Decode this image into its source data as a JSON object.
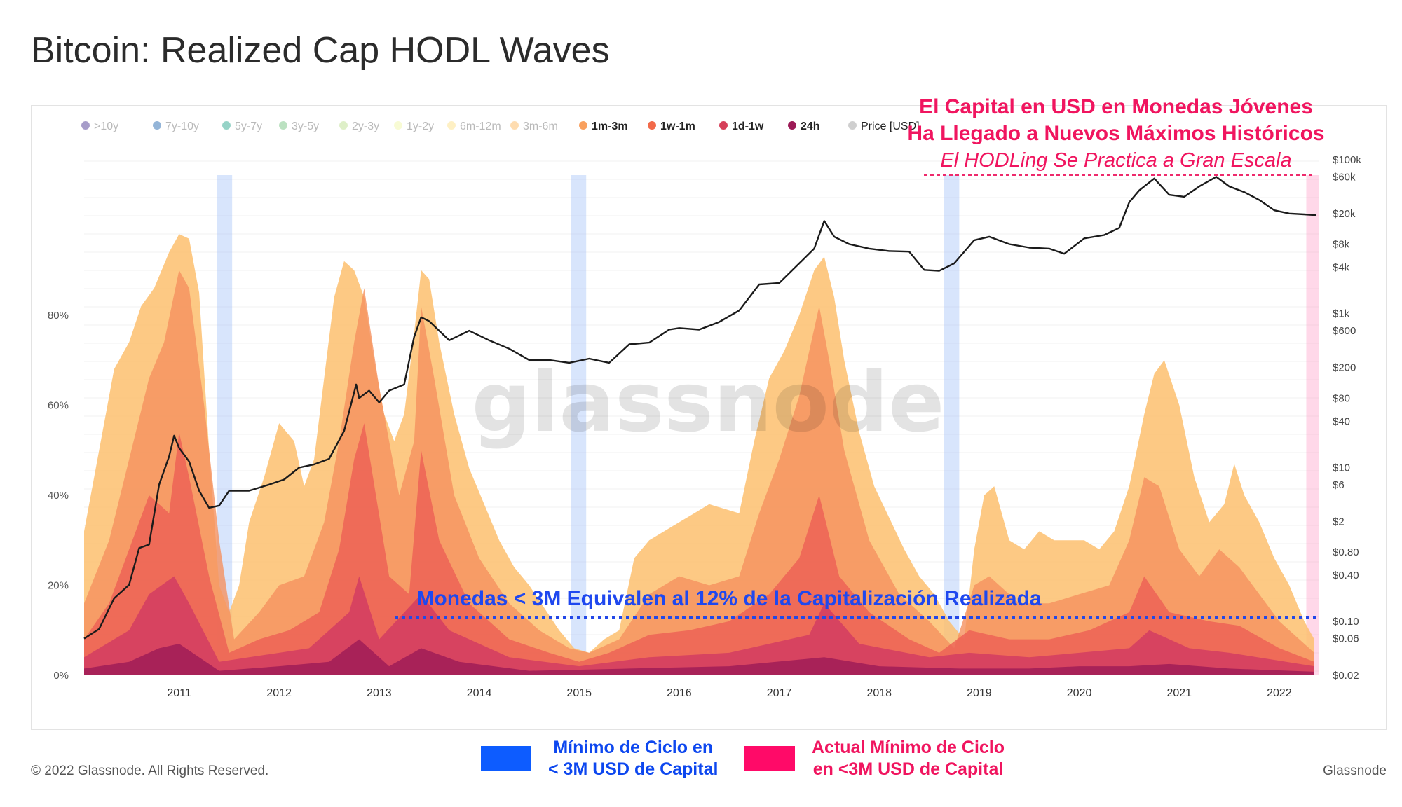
{
  "title": "Bitcoin: Realized Cap HODL Waves",
  "legend": [
    {
      "label": ">10y",
      "color": "#5d4a9c"
    },
    {
      "label": "7y-10y",
      "color": "#3d79b8"
    },
    {
      "label": "5y-7y",
      "color": "#3fae99"
    },
    {
      "label": "3y-5y",
      "color": "#84c98e"
    },
    {
      "label": "2y-3y",
      "color": "#c2e29a"
    },
    {
      "label": "1y-2y",
      "color": "#f2f7b0"
    },
    {
      "label": "6m-12m",
      "color": "#fde394"
    },
    {
      "label": "3m-6m",
      "color": "#fdbf6f"
    },
    {
      "label": "1m-3m",
      "color": "#f9a05e"
    },
    {
      "label": "1w-1m",
      "color": "#f26a4a"
    },
    {
      "label": "1d-1w",
      "color": "#d63f59"
    },
    {
      "label": "24h",
      "color": "#9c1a56"
    },
    {
      "label": "Price [USD]",
      "color": "#cfcfcf"
    }
  ],
  "annotations": {
    "top_line1": "El Capital en USD en Monedas Jóvenes",
    "top_line2": "Ha Llegado a Nuevos Máximos Históricos",
    "top_line3": "El HODLing Se Practica a Gran Escala",
    "mid_line": "Monedas < 3M Equivalen al 12% de la Capitalización Realizada"
  },
  "watermark": "glassnode",
  "key": {
    "blue_label_1": "Mínimo de Ciclo en",
    "blue_label_2": "< 3M USD de Capital",
    "pink_label_1": "Actual Mínimo de Ciclo",
    "pink_label_2": "en <3M USD de Capital",
    "blue_color": "#0d5cff",
    "pink_color": "#ff0a68"
  },
  "footer": {
    "copyright": "© 2022 Glassnode. All Rights Reserved.",
    "brand": "Glassnode"
  },
  "chart_data": {
    "type": "area",
    "title": "Bitcoin: Realized Cap HODL Waves",
    "x_ticks": [
      "2011",
      "2012",
      "2013",
      "2014",
      "2015",
      "2016",
      "2017",
      "2018",
      "2019",
      "2020",
      "2021",
      "2022"
    ],
    "y_left_ticks": [
      "0%",
      "20%",
      "40%",
      "60%",
      "80%"
    ],
    "y_left_range": [
      0,
      100
    ],
    "y_right_ticks": [
      "$0.02",
      "$0.06",
      "$0.10",
      "$0.40",
      "$0.80",
      "$2",
      "$6",
      "$10",
      "$40",
      "$80",
      "$200",
      "$600",
      "$1k",
      "$4k",
      "$8k",
      "$20k",
      "$60k",
      "$100k"
    ],
    "y_right_scale": "log",
    "y_right_range": [
      0.02,
      100000
    ],
    "threshold_pct": 12,
    "highlight_periods_years": [
      {
        "start": 2011.88,
        "end": 2012.03,
        "kind": "cycle_low"
      },
      {
        "start": 2015.42,
        "end": 2015.57,
        "kind": "cycle_low"
      },
      {
        "start": 2019.15,
        "end": 2019.3,
        "kind": "cycle_low"
      },
      {
        "start": 2022.77,
        "end": 2022.9,
        "kind": "current_low"
      }
    ],
    "series": [
      {
        "name": "3m-6m",
        "color": "#fdbf6f",
        "x": [
          2010.55,
          2010.7,
          2010.85,
          2011.0,
          2011.12,
          2011.25,
          2011.4,
          2011.5,
          2011.6,
          2011.7,
          2011.8,
          2011.9,
          2012.0,
          2012.1,
          2012.2,
          2012.35,
          2012.5,
          2012.65,
          2012.75,
          2012.85,
          2012.95,
          2013.05,
          2013.15,
          2013.25,
          2013.35,
          2013.45,
          2013.55,
          2013.65,
          2013.75,
          2013.85,
          2013.92,
          2014.0,
          2014.1,
          2014.25,
          2014.4,
          2014.55,
          2014.7,
          2014.85,
          2015.0,
          2015.15,
          2015.3,
          2015.45,
          2015.6,
          2015.75,
          2015.9,
          2016.05,
          2016.2,
          2016.35,
          2016.5,
          2016.65,
          2016.8,
          2016.95,
          2017.1,
          2017.25,
          2017.4,
          2017.55,
          2017.7,
          2017.85,
          2017.95,
          2018.05,
          2018.15,
          2018.3,
          2018.45,
          2018.6,
          2018.75,
          2018.9,
          2019.05,
          2019.2,
          2019.35,
          2019.45,
          2019.55,
          2019.65,
          2019.8,
          2019.95,
          2020.1,
          2020.25,
          2020.4,
          2020.55,
          2020.7,
          2020.85,
          2021.0,
          2021.15,
          2021.25,
          2021.35,
          2021.5,
          2021.65,
          2021.8,
          2021.95,
          2022.05,
          2022.15,
          2022.3,
          2022.45,
          2022.6,
          2022.75,
          2022.85
        ],
        "values": [
          32,
          50,
          68,
          74,
          82,
          86,
          94,
          98,
          97,
          85,
          50,
          20,
          14,
          20,
          34,
          44,
          56,
          52,
          42,
          48,
          66,
          84,
          92,
          90,
          84,
          70,
          58,
          52,
          58,
          76,
          90,
          88,
          74,
          58,
          46,
          38,
          30,
          24,
          20,
          15,
          10,
          6,
          5,
          8,
          10,
          26,
          30,
          32,
          34,
          36,
          38,
          37,
          36,
          52,
          66,
          72,
          80,
          90,
          93,
          84,
          70,
          54,
          42,
          35,
          28,
          22,
          18,
          12,
          8,
          28,
          40,
          42,
          30,
          28,
          32,
          30,
          30,
          30,
          28,
          32,
          42,
          58,
          67,
          70,
          60,
          44,
          34,
          38,
          47,
          40,
          34,
          26,
          20,
          12,
          8
        ]
      },
      {
        "name": "1m-3m",
        "color": "#f5915f",
        "x": [
          2010.55,
          2010.8,
          2011.0,
          2011.2,
          2011.35,
          2011.5,
          2011.6,
          2011.75,
          2011.9,
          2012.05,
          2012.3,
          2012.5,
          2012.75,
          2012.95,
          2013.1,
          2013.25,
          2013.35,
          2013.5,
          2013.7,
          2013.85,
          2013.92,
          2014.05,
          2014.25,
          2014.5,
          2014.8,
          2015.1,
          2015.4,
          2015.6,
          2015.9,
          2016.2,
          2016.5,
          2016.8,
          2017.1,
          2017.3,
          2017.5,
          2017.7,
          2017.9,
          2018.0,
          2018.15,
          2018.4,
          2018.7,
          2019.0,
          2019.25,
          2019.45,
          2019.6,
          2019.9,
          2020.2,
          2020.5,
          2020.8,
          2021.0,
          2021.15,
          2021.3,
          2021.5,
          2021.7,
          2021.9,
          2022.1,
          2022.3,
          2022.5,
          2022.7,
          2022.85
        ],
        "values": [
          16,
          30,
          48,
          66,
          74,
          90,
          86,
          60,
          30,
          8,
          14,
          20,
          22,
          34,
          52,
          74,
          86,
          64,
          40,
          52,
          82,
          66,
          40,
          26,
          16,
          10,
          6,
          5,
          8,
          18,
          22,
          20,
          22,
          36,
          48,
          62,
          82,
          70,
          50,
          30,
          18,
          12,
          6,
          20,
          22,
          16,
          16,
          18,
          20,
          30,
          44,
          42,
          28,
          22,
          28,
          24,
          18,
          12,
          8,
          5
        ]
      },
      {
        "name": "1w-1m",
        "color": "#ec5f55",
        "x": [
          2010.55,
          2010.8,
          2011.0,
          2011.2,
          2011.4,
          2011.5,
          2011.6,
          2011.8,
          2012.0,
          2012.3,
          2012.6,
          2012.9,
          2013.1,
          2013.25,
          2013.35,
          2013.6,
          2013.8,
          2013.92,
          2014.1,
          2014.4,
          2014.8,
          2015.2,
          2015.5,
          2015.8,
          2016.2,
          2016.6,
          2017.0,
          2017.4,
          2017.7,
          2017.9,
          2018.1,
          2018.4,
          2018.8,
          2019.1,
          2019.4,
          2019.8,
          2020.2,
          2020.6,
          2021.0,
          2021.15,
          2021.4,
          2021.8,
          2022.1,
          2022.5,
          2022.85
        ],
        "values": [
          8,
          16,
          28,
          40,
          36,
          54,
          44,
          22,
          5,
          8,
          10,
          14,
          28,
          48,
          56,
          22,
          18,
          50,
          30,
          16,
          8,
          5,
          3,
          5,
          9,
          10,
          12,
          18,
          26,
          40,
          22,
          14,
          8,
          5,
          10,
          8,
          8,
          10,
          14,
          22,
          14,
          12,
          11,
          6,
          3
        ]
      },
      {
        "name": "1d-1w",
        "color": "#d13a63",
        "x": [
          2010.55,
          2011.0,
          2011.2,
          2011.45,
          2011.6,
          2011.9,
          2012.2,
          2012.8,
          2013.2,
          2013.3,
          2013.5,
          2013.92,
          2014.2,
          2014.8,
          2015.5,
          2016.2,
          2017.0,
          2017.8,
          2017.95,
          2018.3,
          2019.0,
          2019.4,
          2020.0,
          2020.5,
          2021.0,
          2021.2,
          2021.6,
          2022.0,
          2022.85
        ],
        "values": [
          4,
          10,
          18,
          22,
          16,
          3,
          4,
          6,
          14,
          22,
          8,
          18,
          10,
          4,
          2,
          4,
          5,
          9,
          16,
          7,
          4,
          5,
          4,
          5,
          6,
          10,
          6,
          5,
          2
        ]
      },
      {
        "name": "24h",
        "color": "#9c1a56",
        "x": [
          2010.55,
          2011.0,
          2011.3,
          2011.5,
          2011.9,
          2012.5,
          2013.0,
          2013.3,
          2013.6,
          2013.92,
          2014.3,
          2015.0,
          2016.0,
          2017.0,
          2017.95,
          2018.5,
          2019.3,
          2020.0,
          2020.5,
          2021.0,
          2021.4,
          2022.0,
          2022.85
        ],
        "values": [
          1.5,
          3,
          6,
          7,
          1,
          2,
          3,
          8,
          2,
          6,
          3,
          1,
          1.5,
          2,
          4,
          2,
          1.5,
          1.5,
          2,
          2,
          2.5,
          1.5,
          0.8
        ]
      },
      {
        "name": "Price [USD]",
        "color": "#1b1b1b",
        "x": [
          2010.55,
          2010.7,
          2010.85,
          2011.0,
          2011.1,
          2011.2,
          2011.3,
          2011.4,
          2011.45,
          2011.5,
          2011.6,
          2011.7,
          2011.8,
          2011.9,
          2012.0,
          2012.2,
          2012.4,
          2012.55,
          2012.7,
          2012.85,
          2013.0,
          2013.15,
          2013.27,
          2013.3,
          2013.4,
          2013.5,
          2013.6,
          2013.75,
          2013.85,
          2013.92,
          2014.0,
          2014.1,
          2014.2,
          2014.4,
          2014.6,
          2014.8,
          2015.0,
          2015.2,
          2015.4,
          2015.6,
          2015.8,
          2016.0,
          2016.2,
          2016.4,
          2016.5,
          2016.7,
          2016.9,
          2017.1,
          2017.3,
          2017.5,
          2017.7,
          2017.85,
          2017.95,
          2018.05,
          2018.2,
          2018.4,
          2018.6,
          2018.8,
          2018.95,
          2019.1,
          2019.25,
          2019.45,
          2019.6,
          2019.8,
          2020.0,
          2020.2,
          2020.35,
          2020.55,
          2020.75,
          2020.9,
          2021.0,
          2021.1,
          2021.25,
          2021.4,
          2021.55,
          2021.7,
          2021.87,
          2022.0,
          2022.15,
          2022.3,
          2022.45,
          2022.6,
          2022.75,
          2022.87
        ],
        "values": [
          0.06,
          0.08,
          0.2,
          0.3,
          0.9,
          1.0,
          6.0,
          14,
          26,
          18,
          12,
          5,
          3,
          3.2,
          5,
          5,
          6,
          7,
          10,
          11,
          13,
          30,
          120,
          80,
          100,
          70,
          100,
          120,
          500,
          900,
          800,
          600,
          450,
          600,
          450,
          350,
          250,
          250,
          230,
          260,
          230,
          400,
          420,
          620,
          650,
          620,
          780,
          1100,
          2400,
          2500,
          4500,
          7000,
          16000,
          10000,
          8000,
          7000,
          6500,
          6400,
          3700,
          3600,
          4500,
          9000,
          10000,
          8000,
          7200,
          7000,
          6000,
          9500,
          10500,
          13000,
          28000,
          40000,
          57000,
          35000,
          33000,
          45000,
          60000,
          45000,
          38000,
          30000,
          22000,
          20000,
          19500,
          19000
        ]
      }
    ]
  }
}
